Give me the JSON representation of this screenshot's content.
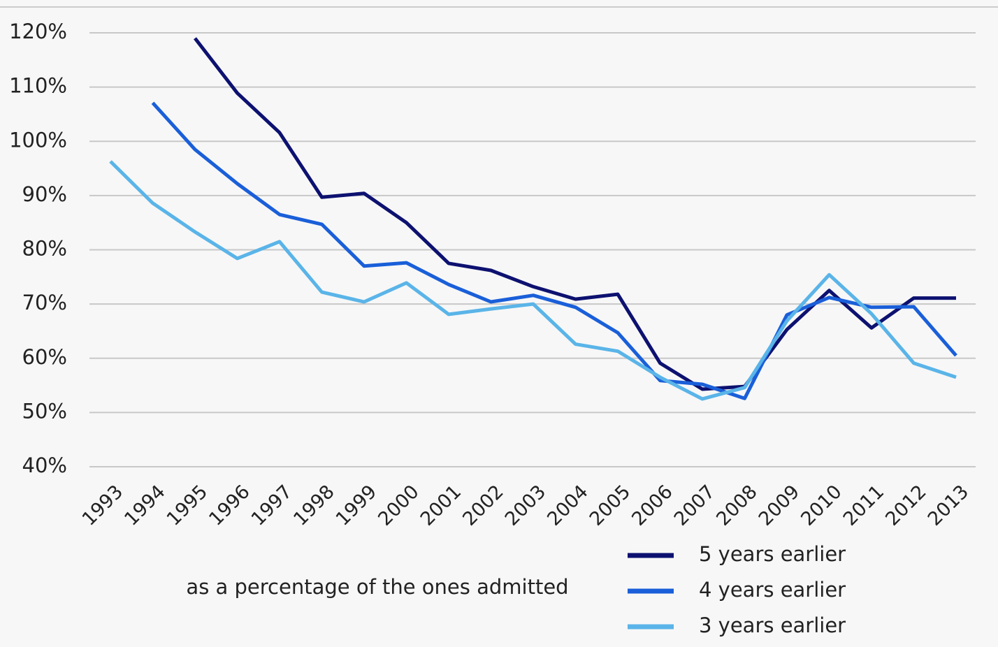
{
  "chart_data": {
    "type": "line",
    "annotation": "as a percentage of the ones admitted",
    "categories": [
      "1993",
      "1994",
      "1995",
      "1996",
      "1997",
      "1998",
      "1999",
      "2000",
      "2001",
      "2002",
      "2003",
      "2004",
      "2005",
      "2006",
      "2007",
      "2008",
      "2009",
      "2010",
      "2011",
      "2012",
      "2013"
    ],
    "series": [
      {
        "name": "5 years earlier",
        "color": "#0d1170",
        "values": [
          null,
          null,
          119,
          108.9,
          101.6,
          89.7,
          90.4,
          85,
          77.5,
          76.2,
          73.2,
          70.9,
          71.8,
          59.1,
          54.3,
          54.8,
          65.3,
          72.5,
          65.6,
          71.1,
          71.1
        ]
      },
      {
        "name": "4 years earlier",
        "color": "#1a5fd9",
        "values": [
          null,
          107.1,
          98.5,
          92.2,
          86.5,
          84.7,
          77,
          77.6,
          73.6,
          70.4,
          71.6,
          69.4,
          64.7,
          55.9,
          55.2,
          52.6,
          68,
          71.2,
          69.4,
          69.5,
          60.5
        ]
      },
      {
        "name": "3 years earlier",
        "color": "#5ab4e8",
        "values": [
          96.3,
          88.6,
          83.3,
          78.4,
          81.5,
          72.2,
          70.4,
          73.9,
          68.1,
          69.1,
          70,
          62.6,
          61.3,
          56.5,
          52.5,
          54.6,
          66.9,
          75.4,
          68.2,
          59.1,
          56.5
        ]
      }
    ],
    "ylim": [
      40,
      120
    ],
    "yticks": [
      {
        "value": 40,
        "label": "40%"
      },
      {
        "value": 50,
        "label": "50%"
      },
      {
        "value": 60,
        "label": "60%"
      },
      {
        "value": 70,
        "label": "70%"
      },
      {
        "value": 80,
        "label": "80%"
      },
      {
        "value": 90,
        "label": "90%"
      },
      {
        "value": 100,
        "label": "100%"
      },
      {
        "value": 110,
        "label": "110%"
      },
      {
        "value": 120,
        "label": "120%"
      }
    ],
    "grid": true
  }
}
